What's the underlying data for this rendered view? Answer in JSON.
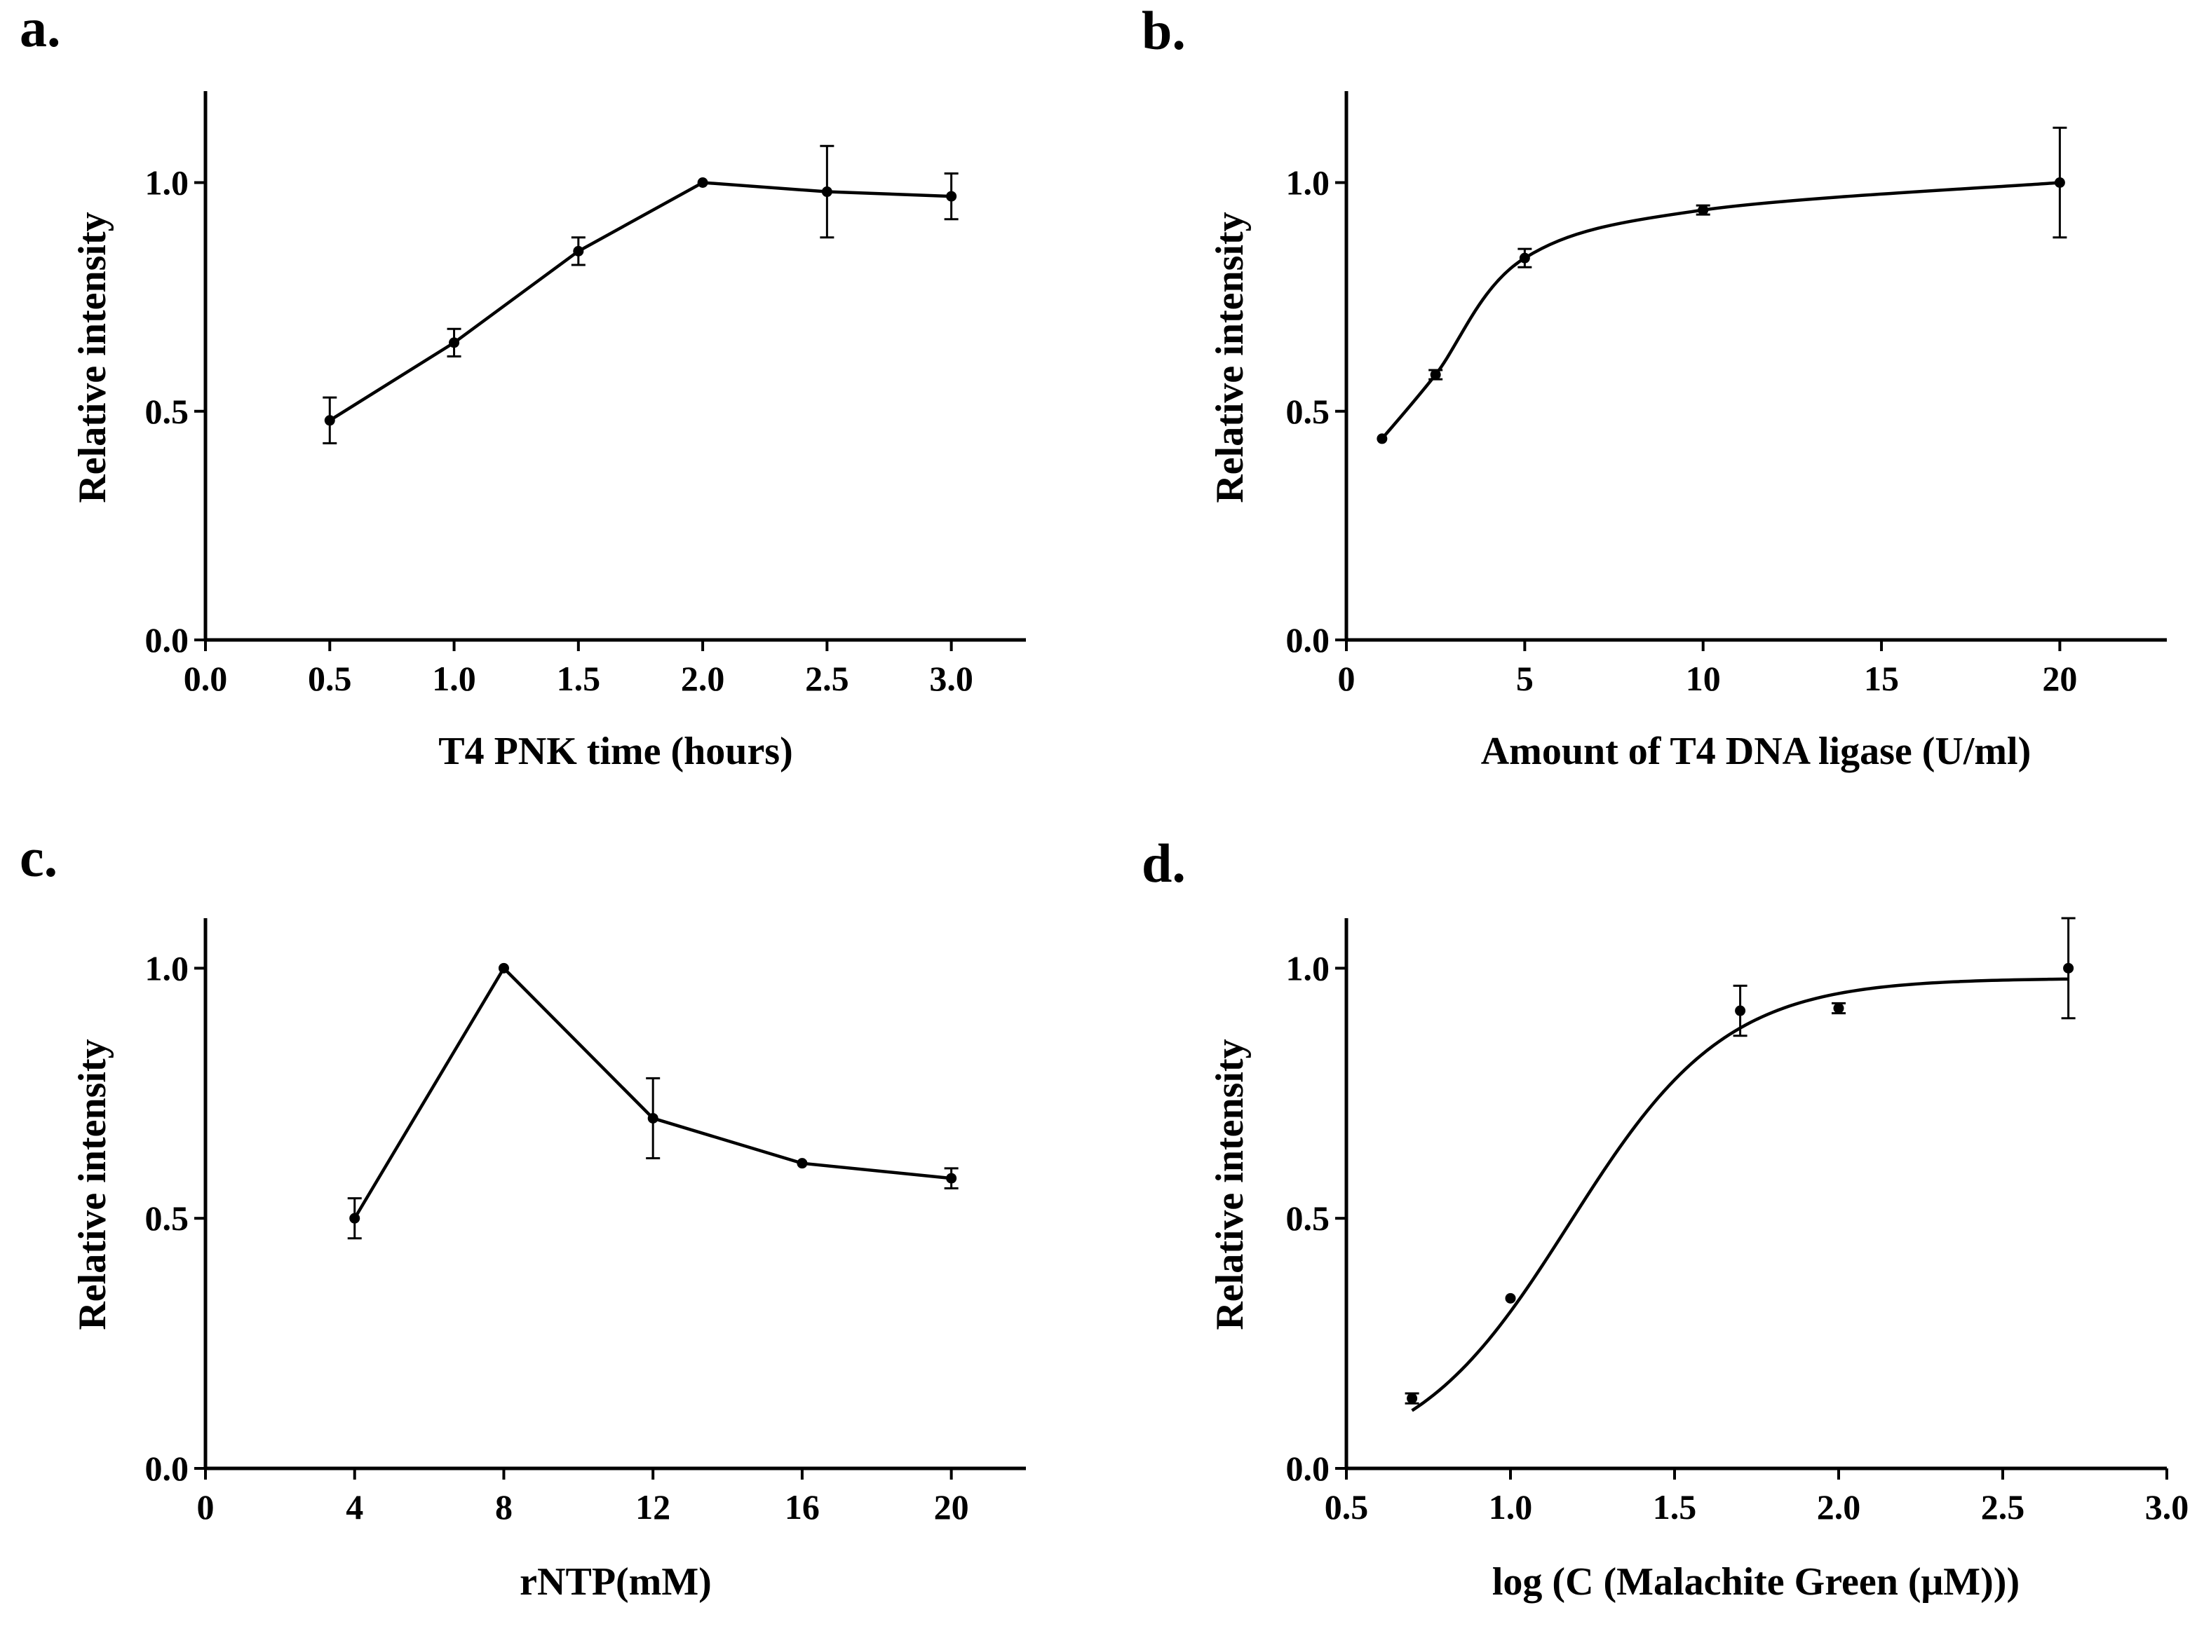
{
  "chart_data": [
    {
      "panel": "a.",
      "type": "line",
      "xlabel": "T4 PNK time (hours)",
      "ylabel": "Relative intensity",
      "xlim": [
        0,
        3.3
      ],
      "ylim": [
        0,
        1.2
      ],
      "xticks": [
        "0.0",
        "0.5",
        "1.0",
        "1.5",
        "2.0",
        "2.5",
        "3.0"
      ],
      "xtick_values": [
        0,
        0.5,
        1.0,
        1.5,
        2.0,
        2.5,
        3.0
      ],
      "yticks": [
        "0.0",
        "0.5",
        "1.0"
      ],
      "ytick_values": [
        0,
        0.5,
        1.0
      ],
      "x": [
        0.5,
        1.0,
        1.5,
        2.0,
        2.5,
        3.0
      ],
      "y": [
        0.48,
        0.65,
        0.85,
        1.0,
        0.98,
        0.97
      ],
      "err": [
        0.05,
        0.03,
        0.03,
        0.0,
        0.1,
        0.05
      ],
      "curve": "polyline"
    },
    {
      "panel": "b.",
      "type": "line",
      "xlabel": "Amount of T4 DNA ligase  (U/ml)",
      "ylabel": "Relative intensity",
      "xlim": [
        0,
        23
      ],
      "ylim": [
        0,
        1.2
      ],
      "xticks": [
        "0",
        "5",
        "10",
        "15",
        "20"
      ],
      "xtick_values": [
        0,
        5,
        10,
        15,
        20
      ],
      "yticks": [
        "0.0",
        "0.5",
        "1.0"
      ],
      "ytick_values": [
        0,
        0.5,
        1.0
      ],
      "x": [
        1,
        2.5,
        5,
        10,
        20
      ],
      "y": [
        0.44,
        0.58,
        0.835,
        0.94,
        1.0
      ],
      "err": [
        0.0,
        0.01,
        0.02,
        0.01,
        0.12
      ],
      "curve": "smooth"
    },
    {
      "panel": "c.",
      "type": "line",
      "xlabel": "rNTP(mM)",
      "ylabel": "Relative intensity",
      "xlim": [
        0,
        22
      ],
      "ylim": [
        0,
        1.1
      ],
      "xticks": [
        "0",
        "4",
        "8",
        "12",
        "16",
        "20"
      ],
      "xtick_values": [
        0,
        4,
        8,
        12,
        16,
        20
      ],
      "yticks": [
        "0.0",
        "0.5",
        "1.0"
      ],
      "ytick_values": [
        0,
        0.5,
        1.0
      ],
      "x": [
        4,
        8,
        12,
        16,
        20
      ],
      "y": [
        0.5,
        1.0,
        0.7,
        0.61,
        0.58
      ],
      "err": [
        0.04,
        0.0,
        0.08,
        0.0,
        0.02
      ],
      "curve": "polyline"
    },
    {
      "panel": "d.",
      "type": "scatter",
      "xlabel": "log (C (Malachite Green (μM)))",
      "ylabel": "Relative intensity",
      "xlim": [
        0.5,
        3.0
      ],
      "ylim": [
        0,
        1.1
      ],
      "xticks": [
        "0.5",
        "1.0",
        "1.5",
        "2.0",
        "2.5",
        "3.0"
      ],
      "xtick_values": [
        0.5,
        1.0,
        1.5,
        2.0,
        2.5,
        3.0
      ],
      "yticks": [
        "0.0",
        "0.5",
        "1.0"
      ],
      "ytick_values": [
        0,
        0.5,
        1.0
      ],
      "x": [
        0.7,
        1.0,
        1.7,
        2.0,
        2.7
      ],
      "y": [
        0.14,
        0.34,
        0.915,
        0.92,
        1.0
      ],
      "err": [
        0.01,
        0.0,
        0.05,
        0.01,
        0.1
      ],
      "fit": {
        "type": "sigmoid",
        "bottom": 0.0,
        "top": 0.98,
        "logEC50": 1.18,
        "hill": 1.82,
        "x_range": [
          0.7,
          2.7
        ]
      }
    }
  ]
}
